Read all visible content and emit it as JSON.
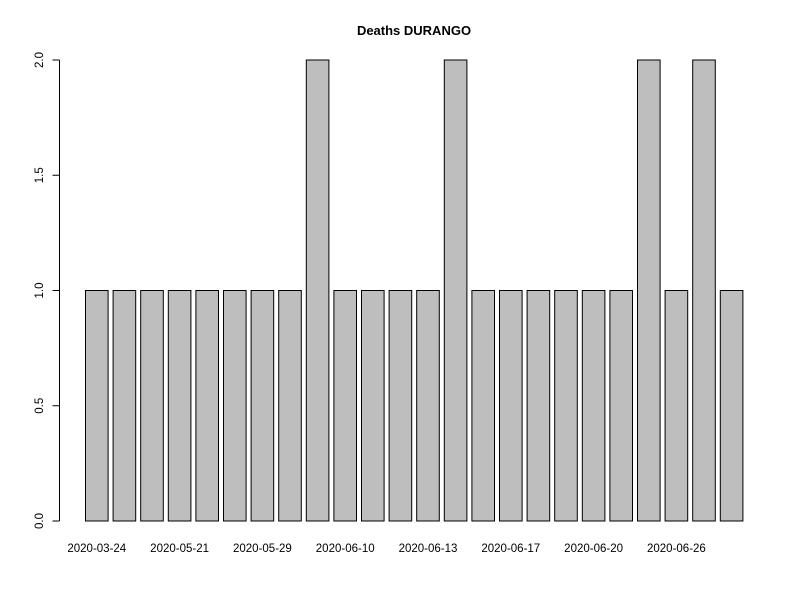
{
  "chart_data": {
    "type": "bar",
    "title": "Deaths DURANGO",
    "xlabel": "",
    "ylabel": "",
    "ylim": [
      0,
      2
    ],
    "y_ticks": [
      0.0,
      0.5,
      1.0,
      1.5,
      2.0
    ],
    "y_tick_labels": [
      "0.0",
      "0.5",
      "1.0",
      "1.5",
      "2.0"
    ],
    "categories": [
      "2020-03-24",
      "",
      "",
      "2020-05-21",
      "",
      "",
      "2020-05-29",
      "",
      "",
      "2020-06-10",
      "",
      "",
      "2020-06-13",
      "",
      "",
      "2020-06-17",
      "",
      "",
      "2020-06-20",
      "",
      "",
      "2020-06-26",
      "",
      ""
    ],
    "x_tick_labels_shown": [
      "2020-03-24",
      "2020-05-21",
      "2020-05-29",
      "2020-06-10",
      "2020-06-13",
      "2020-06-17",
      "2020-06-20",
      "2020-06-26"
    ],
    "values": [
      1,
      1,
      1,
      1,
      1,
      1,
      1,
      1,
      2,
      1,
      1,
      1,
      1,
      2,
      1,
      1,
      1,
      1,
      1,
      1,
      2,
      1,
      2,
      1
    ],
    "bar_color": "#bebebe",
    "bar_border_color": "#000000",
    "grid": false,
    "legend": "none"
  }
}
